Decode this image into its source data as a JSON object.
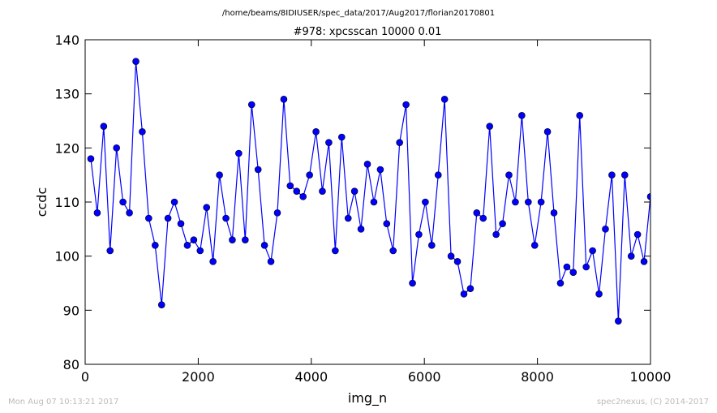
{
  "chart_data": {
    "type": "line",
    "header": "/home/beams/8IDIUSER/spec_data/2017/Aug2017/florian20170801",
    "title": "#978: xpcsscan 10000 0.01",
    "x_label": "img_n",
    "y_label": "ccdc",
    "footer_left": "Mon Aug 07 10:13:21 2017",
    "footer_right": "spec2nexus, (C) 2014-2017",
    "x": [
      100,
      214,
      328,
      441,
      555,
      669,
      783,
      897,
      1010,
      1124,
      1238,
      1352,
      1465,
      1579,
      1693,
      1807,
      1921,
      2034,
      2148,
      2262,
      2376,
      2490,
      2603,
      2717,
      2831,
      2945,
      3059,
      3172,
      3286,
      3400,
      3514,
      3627,
      3741,
      3855,
      3969,
      4083,
      4196,
      4310,
      4424,
      4538,
      4652,
      4765,
      4879,
      4993,
      5107,
      5221,
      5334,
      5448,
      5562,
      5676,
      5790,
      5903,
      6017,
      6131,
      6245,
      6358,
      6472,
      6586,
      6700,
      6814,
      6927,
      7041,
      7155,
      7269,
      7383,
      7496,
      7610,
      7724,
      7838,
      7952,
      8065,
      8179,
      8293,
      8407,
      8521,
      8634,
      8748,
      8862,
      8976,
      9090,
      9203,
      9317,
      9431,
      9545,
      9659,
      9772,
      9886,
      10000
    ],
    "series": [
      {
        "color": "#0000ff",
        "values": [
          118,
          108,
          124,
          101,
          120,
          110,
          108,
          136,
          123,
          107,
          102,
          91,
          107,
          110,
          106,
          102,
          103,
          101,
          109,
          99,
          115,
          107,
          103,
          119,
          103,
          128,
          116,
          102,
          99,
          108,
          129,
          113,
          112,
          111,
          115,
          123,
          112,
          121,
          101,
          122,
          107,
          112,
          105,
          117,
          110,
          116,
          106,
          101,
          121,
          128,
          95,
          104,
          110,
          102,
          115,
          129,
          100,
          99,
          93,
          94,
          108,
          107,
          124,
          104,
          106,
          115,
          110,
          126,
          110,
          102,
          110,
          123,
          108,
          95,
          98,
          97,
          126,
          98,
          101,
          93,
          105,
          115,
          88,
          115,
          100,
          104,
          99,
          111
        ]
      }
    ],
    "xlim": [
      0,
      10000
    ],
    "xticks": [
      0,
      2000,
      4000,
      6000,
      8000,
      10000
    ],
    "ylim": [
      80,
      140
    ],
    "yticks": [
      80,
      90,
      100,
      110,
      120,
      130,
      140
    ],
    "grid": false
  }
}
